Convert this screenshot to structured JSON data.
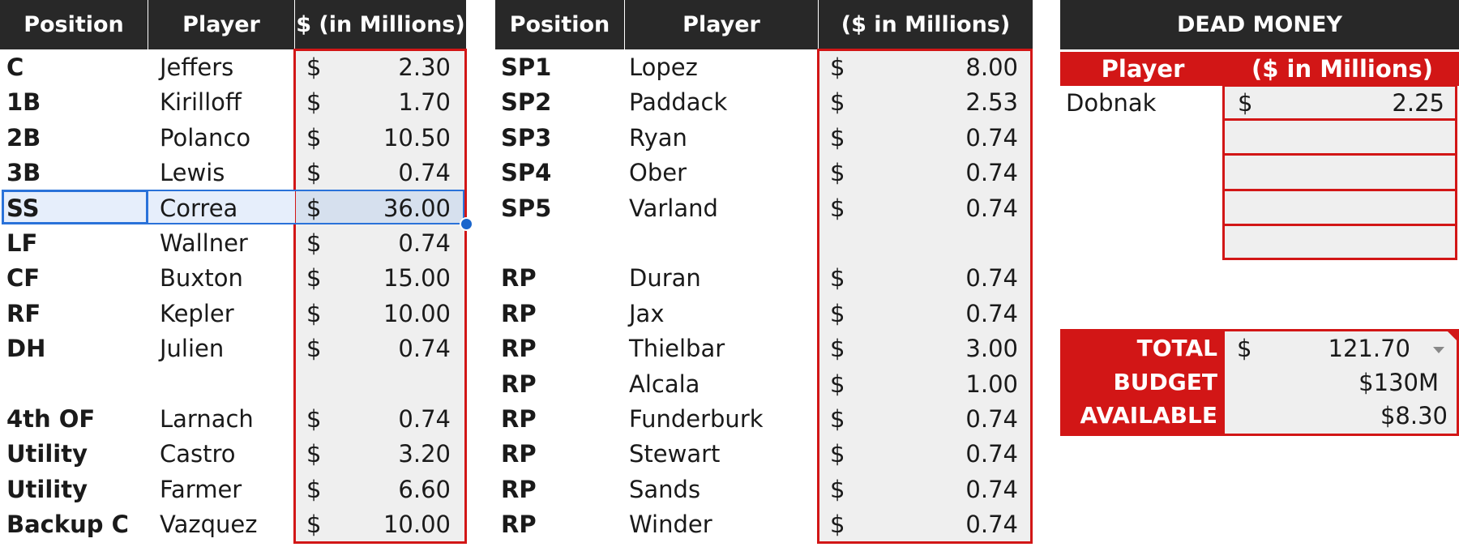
{
  "lineup": {
    "headers": {
      "position": "Position",
      "player": "Player",
      "salary": "$ (in Millions)"
    },
    "rows": [
      {
        "pos": "C",
        "player": "Jeffers",
        "cur": "$",
        "amt": "2.30"
      },
      {
        "pos": "1B",
        "player": "Kirilloff",
        "cur": "$",
        "amt": "1.70"
      },
      {
        "pos": "2B",
        "player": "Polanco",
        "cur": "$",
        "amt": "10.50"
      },
      {
        "pos": "3B",
        "player": "Lewis",
        "cur": "$",
        "amt": "0.74"
      },
      {
        "pos": "SS",
        "player": "Correa",
        "cur": "$",
        "amt": "36.00"
      },
      {
        "pos": "LF",
        "player": "Wallner",
        "cur": "$",
        "amt": "0.74"
      },
      {
        "pos": "CF",
        "player": "Buxton",
        "cur": "$",
        "amt": "15.00"
      },
      {
        "pos": "RF",
        "player": "Kepler",
        "cur": "$",
        "amt": "10.00"
      },
      {
        "pos": "DH",
        "player": "Julien",
        "cur": "$",
        "amt": "0.74"
      },
      {
        "pos": "",
        "player": "",
        "cur": "",
        "amt": ""
      },
      {
        "pos": "4th OF",
        "player": "Larnach",
        "cur": "$",
        "amt": "0.74"
      },
      {
        "pos": "Utility",
        "player": "Castro",
        "cur": "$",
        "amt": "3.20"
      },
      {
        "pos": "Utility",
        "player": "Farmer",
        "cur": "$",
        "amt": "6.60"
      },
      {
        "pos": "Backup C",
        "player": "Vazquez",
        "cur": "$",
        "amt": "10.00"
      }
    ]
  },
  "pitching": {
    "headers": {
      "position": "Position",
      "player": "Player",
      "salary": "($ in Millions)"
    },
    "rows": [
      {
        "pos": "SP1",
        "player": "Lopez",
        "cur": "$",
        "amt": "8.00"
      },
      {
        "pos": "SP2",
        "player": "Paddack",
        "cur": "$",
        "amt": "2.53"
      },
      {
        "pos": "SP3",
        "player": "Ryan",
        "cur": "$",
        "amt": "0.74"
      },
      {
        "pos": "SP4",
        "player": "Ober",
        "cur": "$",
        "amt": "0.74"
      },
      {
        "pos": "SP5",
        "player": "Varland",
        "cur": "$",
        "amt": "0.74"
      },
      {
        "pos": "",
        "player": "",
        "cur": "",
        "amt": ""
      },
      {
        "pos": "RP",
        "player": "Duran",
        "cur": "$",
        "amt": "0.74"
      },
      {
        "pos": "RP",
        "player": "Jax",
        "cur": "$",
        "amt": "0.74"
      },
      {
        "pos": "RP",
        "player": "Thielbar",
        "cur": "$",
        "amt": "3.00"
      },
      {
        "pos": "RP",
        "player": "Alcala",
        "cur": "$",
        "amt": "1.00"
      },
      {
        "pos": "RP",
        "player": "Funderburk",
        "cur": "$",
        "amt": "0.74"
      },
      {
        "pos": "RP",
        "player": "Stewart",
        "cur": "$",
        "amt": "0.74"
      },
      {
        "pos": "RP",
        "player": "Sands",
        "cur": "$",
        "amt": "0.74"
      },
      {
        "pos": "RP",
        "player": "Winder",
        "cur": "$",
        "amt": "0.74"
      }
    ]
  },
  "dead_money": {
    "title": "DEAD MONEY",
    "headers": {
      "player": "Player",
      "salary": "($ in Millions)"
    },
    "rows": [
      {
        "player": "Dobnak",
        "cur": "$",
        "amt": "2.25"
      }
    ]
  },
  "summary": {
    "total_label": "TOTAL",
    "total_cur": "$",
    "total_value": "121.70",
    "budget_label": "BUDGET",
    "budget_value": "$130M",
    "available_label": "AVAILABLE",
    "available_value": "$8.30"
  },
  "selection": {
    "active_cell": "SS"
  },
  "colors": {
    "header_bg": "#282828",
    "accent_red": "#d21616",
    "money_bg": "#efefef",
    "selection_blue": "#2a72d9"
  }
}
